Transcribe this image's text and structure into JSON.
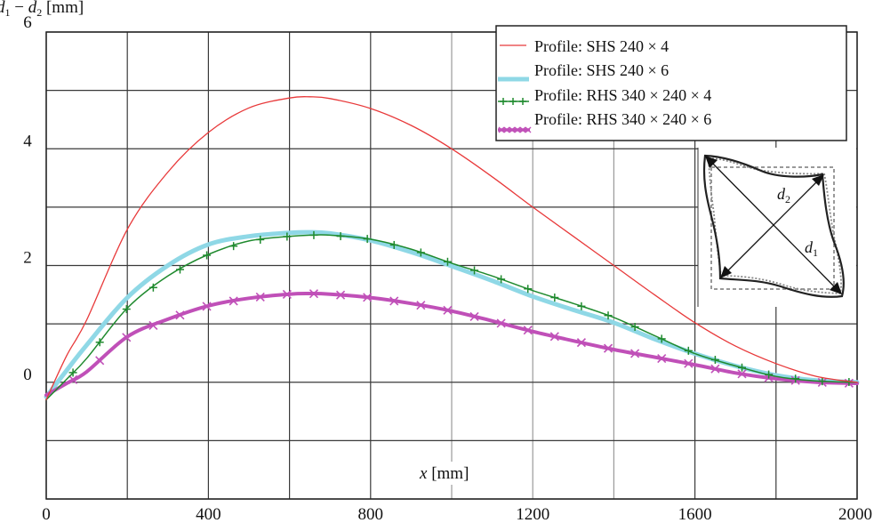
{
  "chart_data": {
    "type": "line",
    "title": "",
    "xlabel": "x [mm]",
    "ylabel": "d1 − d2 [mm]",
    "xlim": [
      0,
      2000
    ],
    "ylim": [
      -2,
      6
    ],
    "grid": true,
    "legend_position": "upper right",
    "x_ticks": [
      0,
      400,
      800,
      1200,
      1600,
      2000
    ],
    "y_ticks": [
      0,
      2,
      4,
      6
    ],
    "x_grid": [
      0,
      200,
      400,
      600,
      800,
      1000,
      1200,
      1400,
      1600,
      1800,
      2000
    ],
    "y_grid": [
      -2,
      -1,
      0,
      1,
      2,
      3,
      4,
      5,
      6
    ],
    "x": [
      0,
      50,
      100,
      200,
      300,
      400,
      500,
      600,
      650,
      700,
      800,
      900,
      1000,
      1100,
      1200,
      1300,
      1400,
      1500,
      1600,
      1700,
      1800,
      1900,
      2000
    ],
    "series": [
      {
        "name": "Profile: SHS 240 × 4",
        "color": "#e8393a",
        "width": 1.3,
        "marker": "none",
        "values": [
          -0.3,
          0.45,
          1.07,
          2.62,
          3.6,
          4.28,
          4.7,
          4.87,
          4.89,
          4.86,
          4.69,
          4.4,
          4.0,
          3.52,
          3.0,
          2.5,
          2.0,
          1.5,
          1.02,
          0.62,
          0.32,
          0.1,
          0.0
        ]
      },
      {
        "name": "Profile: SHS 240 × 6",
        "color": "#8fd8e6",
        "width": 5,
        "marker": "none",
        "values": [
          -0.25,
          0.2,
          0.64,
          1.45,
          2.0,
          2.36,
          2.5,
          2.56,
          2.57,
          2.55,
          2.43,
          2.23,
          1.99,
          1.74,
          1.47,
          1.24,
          1.02,
          0.74,
          0.49,
          0.28,
          0.12,
          0.03,
          0.0
        ]
      },
      {
        "name": "Profile: RHS 340 × 240 × 4",
        "color": "#1f8a2e",
        "width": 1.5,
        "marker": "plus",
        "values": [
          -0.3,
          0.05,
          0.41,
          1.27,
          1.82,
          2.19,
          2.42,
          2.5,
          2.52,
          2.52,
          2.45,
          2.28,
          2.04,
          1.82,
          1.57,
          1.35,
          1.11,
          0.8,
          0.49,
          0.28,
          0.1,
          0.02,
          0.0
        ]
      },
      {
        "name": "Profile: RHS 340 × 240 × 6",
        "color": "#c050b8",
        "width": 4,
        "marker": "x",
        "values": [
          -0.22,
          -0.02,
          0.18,
          0.78,
          1.08,
          1.31,
          1.44,
          1.51,
          1.52,
          1.51,
          1.45,
          1.35,
          1.22,
          1.05,
          0.87,
          0.71,
          0.56,
          0.43,
          0.3,
          0.16,
          0.06,
          0.0,
          -0.02
        ]
      }
    ]
  },
  "axes": {
    "ylabel_main": "d",
    "ylabel_sub1": "1",
    "ylabel_minus": " − ",
    "ylabel_sub2": "2",
    "ylabel_unit": " [mm]",
    "xlabel_var": "x",
    "xlabel_unit": " [mm]"
  },
  "legend": {
    "items": [
      {
        "label": "Profile: SHS 240 × 4"
      },
      {
        "label": "Profile: SHS 240 × 6"
      },
      {
        "label": "Profile: RHS 340 × 240 × 4"
      },
      {
        "label": "Profile: RHS 340 × 240 × 6"
      }
    ]
  },
  "inset": {
    "d1_main": "d",
    "d1_sub": "1",
    "d2_main": "d",
    "d2_sub": "2"
  }
}
